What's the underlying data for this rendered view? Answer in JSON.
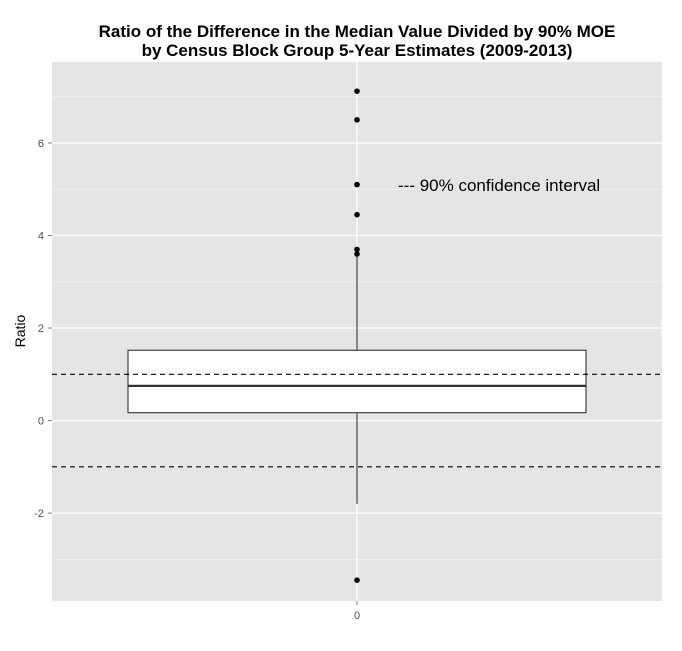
{
  "chart_data": {
    "type": "boxplot",
    "title": "Ratio of the Difference in the Median Value Divided by 90% MOE",
    "subtitle": "by Census Block Group 5-Year Estimates (2009-2013)",
    "xlabel": "",
    "ylabel": "Ratio",
    "x_categories": [
      "0"
    ],
    "y_ticks": [
      -2,
      0,
      2,
      4,
      6
    ],
    "y_tick_labels": [
      "-2",
      "0",
      "2",
      "4",
      "6"
    ],
    "ylim": [
      -3.9,
      7.75
    ],
    "grid": true,
    "box": {
      "category": "0",
      "q1": 0.17,
      "median": 0.75,
      "q3": 1.52,
      "whisker_low": -1.8,
      "whisker_high": 3.55
    },
    "outliers": [
      7.12,
      6.5,
      5.1,
      4.45,
      3.7,
      3.6,
      -3.45
    ],
    "reference_lines": [
      {
        "y": 1,
        "style": "dashed"
      },
      {
        "y": -1,
        "style": "dashed"
      }
    ],
    "annotation": "--- 90% confidence interval",
    "colors": {
      "panel": "#e5e5e5",
      "grid": "#ffffff",
      "box_fill": "#ffffff",
      "ink": "#333333",
      "point": "#000000"
    }
  }
}
